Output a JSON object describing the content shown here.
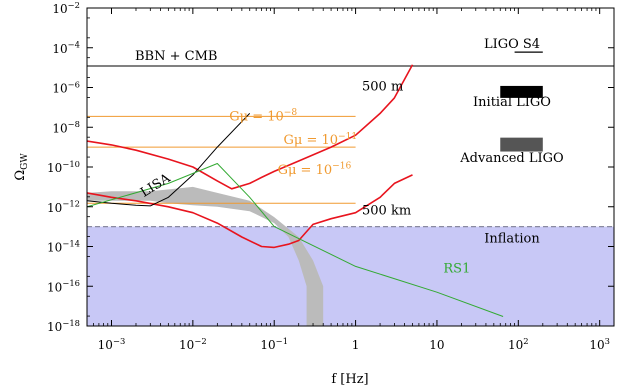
{
  "chart_data": {
    "type": "line",
    "xlabel": "f [Hz]",
    "ylabel": "Ω",
    "ylabel_sub": "GW",
    "x_scale": "log",
    "y_scale": "log",
    "xlim": [
      0.0005,
      1500
    ],
    "ylim": [
      1e-18,
      0.01
    ],
    "x_ticks": [
      {
        "value": 0.001,
        "base": "10",
        "exp": "−3"
      },
      {
        "value": 0.01,
        "base": "10",
        "exp": "−2"
      },
      {
        "value": 0.1,
        "base": "10",
        "exp": "−1"
      },
      {
        "value": 1,
        "base": "1",
        "exp": ""
      },
      {
        "value": 10,
        "base": "10",
        "exp": ""
      },
      {
        "value": 100,
        "base": "10",
        "exp": "2"
      },
      {
        "value": 1000,
        "base": "10",
        "exp": "3"
      }
    ],
    "y_ticks": [
      {
        "value": 1e-18,
        "base": "10",
        "exp": "−18"
      },
      {
        "value": 1e-16,
        "base": "10",
        "exp": "−16"
      },
      {
        "value": 1e-14,
        "base": "10",
        "exp": "−14"
      },
      {
        "value": 1e-12,
        "base": "10",
        "exp": "−12"
      },
      {
        "value": 1e-10,
        "base": "10",
        "exp": "−10"
      },
      {
        "value": 1e-08,
        "base": "10",
        "exp": "−8"
      },
      {
        "value": 1e-06,
        "base": "10",
        "exp": "−6"
      },
      {
        "value": 0.0001,
        "base": "10",
        "exp": "−4"
      },
      {
        "value": 0.01,
        "base": "10",
        "exp": "−2"
      }
    ],
    "bbn_cmb": {
      "label": "BBN + CMB",
      "value": 1.2e-05,
      "color": "#000000"
    },
    "inflation": {
      "label": "Inflation",
      "value": 1e-13,
      "color": "#c8c8f6",
      "line_color": "#8a8aa0"
    },
    "ligo": [
      {
        "label": "LIGO S4",
        "f_range": [
          90,
          200
        ],
        "value": 6e-05,
        "color": "#000000"
      },
      {
        "label": "Initial LIGO",
        "f_range": [
          60,
          200
        ],
        "y_range": [
          3e-07,
          1.2e-06
        ],
        "color": "#000000"
      },
      {
        "label": "Advanced LIGO",
        "f_range": [
          60,
          200
        ],
        "y_range": [
          6e-10,
          3e-09
        ],
        "color": "#555555"
      }
    ],
    "cosmic_string_levels": {
      "color": "#f09a30",
      "x_range": [
        0.0005,
        1.0
      ],
      "items": [
        {
          "label_base": "Gμ = 10",
          "label_exp": "−8",
          "value": 3.5e-08,
          "label_x": 0.028,
          "label_y": 2.2e-08
        },
        {
          "label_base": "Gμ = 10",
          "label_exp": "−11",
          "value": 1e-09,
          "label_x": 0.13,
          "label_y": 1.4e-09
        },
        {
          "label_base": "Gμ = 10",
          "label_exp": "−16",
          "value": 1.5e-12,
          "label_x": 0.11,
          "label_y": 4.5e-11
        }
      ]
    },
    "series": [
      {
        "name": "500 m",
        "color": "#e8141e",
        "label_x": 1.2,
        "label_y": 7e-07,
        "points": [
          [
            0.0005,
            2e-09
          ],
          [
            0.001,
            1.3e-09
          ],
          [
            0.002,
            7e-10
          ],
          [
            0.005,
            2.5e-10
          ],
          [
            0.01,
            1e-10
          ],
          [
            0.02,
            2e-11
          ],
          [
            0.03,
            8e-12
          ],
          [
            0.05,
            1.5e-11
          ],
          [
            0.07,
            3e-11
          ],
          [
            0.1,
            6e-11
          ],
          [
            0.2,
            2e-10
          ],
          [
            0.5,
            1e-09
          ],
          [
            1,
            4e-09
          ],
          [
            2,
            5e-08
          ],
          [
            3,
            3e-07
          ],
          [
            5,
            1.4e-05
          ]
        ]
      },
      {
        "name": "500 km",
        "color": "#e8141e",
        "label_x": 1.2,
        "label_y": 4e-13,
        "points": [
          [
            0.0005,
            5e-12
          ],
          [
            0.001,
            3e-12
          ],
          [
            0.002,
            2e-12
          ],
          [
            0.005,
            1e-12
          ],
          [
            0.01,
            5e-13
          ],
          [
            0.02,
            1.5e-13
          ],
          [
            0.04,
            3e-14
          ],
          [
            0.07,
            1e-14
          ],
          [
            0.1,
            9e-15
          ],
          [
            0.15,
            1.3e-14
          ],
          [
            0.2,
            2e-14
          ],
          [
            0.3,
            1.3e-13
          ],
          [
            0.5,
            2.5e-13
          ],
          [
            1,
            5e-13
          ],
          [
            2,
            3e-12
          ],
          [
            3,
            1.5e-11
          ],
          [
            5,
            4e-11
          ]
        ]
      },
      {
        "name": "LISA",
        "color": "#000000",
        "label_x": 0.0025,
        "label_y": 3e-12,
        "points": [
          [
            0.0005,
            2e-12
          ],
          [
            0.001,
            1.5e-12
          ],
          [
            0.002,
            1.2e-12
          ],
          [
            0.003,
            1.1e-12
          ],
          [
            0.005,
            3e-12
          ],
          [
            0.01,
            4e-11
          ],
          [
            0.02,
            1e-09
          ],
          [
            0.05,
            5e-08
          ]
        ]
      },
      {
        "name": "RS1",
        "color": "#33aa33",
        "label_x": 12,
        "label_y": 5e-16,
        "points": [
          [
            0.0005,
            1e-12
          ],
          [
            0.005,
            1.5e-11
          ],
          [
            0.02,
            1.5e-10
          ],
          [
            0.05,
            3e-12
          ],
          [
            0.1,
            1e-13
          ],
          [
            1,
            1e-15
          ],
          [
            10,
            5e-17
          ],
          [
            65,
            3e-18
          ]
        ]
      }
    ],
    "gray_band": {
      "color": "#bbbbbb",
      "upper": [
        [
          0.0005,
          5e-12
        ],
        [
          0.001,
          6e-12
        ],
        [
          0.003,
          6e-12
        ],
        [
          0.006,
          8e-12
        ],
        [
          0.01,
          1e-11
        ],
        [
          0.02,
          5e-12
        ],
        [
          0.05,
          2e-12
        ],
        [
          0.1,
          3e-13
        ],
        [
          0.2,
          3e-14
        ],
        [
          0.3,
          2e-15
        ],
        [
          0.4,
          1e-16
        ],
        [
          0.4,
          1e-19
        ]
      ],
      "lower": [
        [
          0.25,
          1e-19
        ],
        [
          0.25,
          1e-16
        ],
        [
          0.2,
          2e-15
        ],
        [
          0.15,
          3e-14
        ],
        [
          0.1,
          1.5e-13
        ],
        [
          0.05,
          6e-13
        ],
        [
          0.02,
          1e-12
        ],
        [
          0.01,
          1.2e-12
        ],
        [
          0.005,
          1.5e-12
        ],
        [
          0.003,
          2e-12
        ],
        [
          0.001,
          2e-12
        ],
        [
          0.0005,
          2e-12
        ]
      ]
    }
  }
}
